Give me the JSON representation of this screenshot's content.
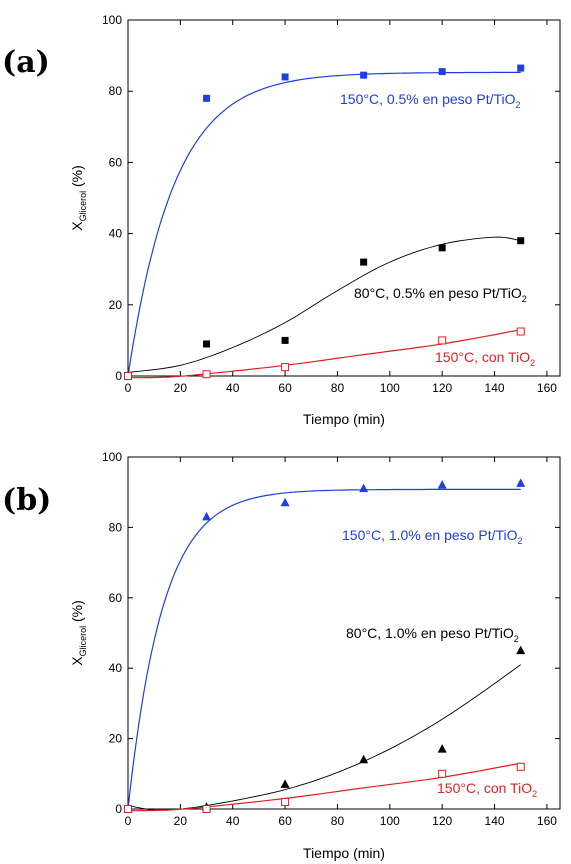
{
  "chart_data": [
    {
      "type": "scatter",
      "panel_label": "(a)",
      "xlabel": "Tiempo (min)",
      "ylabel_main": "X",
      "ylabel_sub": "Glicerol",
      "ylabel_unit": " (%)",
      "xlim": [
        0,
        165
      ],
      "ylim": [
        0,
        100
      ],
      "xticks": [
        0,
        20,
        40,
        60,
        80,
        100,
        120,
        140,
        160
      ],
      "yticks": [
        0,
        20,
        40,
        60,
        80,
        100
      ],
      "series": [
        {
          "id": "a-blue",
          "label_main": "150°C, 0.5% en peso Pt/TiO",
          "label_sub": "2",
          "color": "#1f3fe0",
          "marker": "square-filled",
          "x": [
            0,
            30,
            60,
            90,
            120,
            150
          ],
          "y": [
            0,
            78,
            84,
            84.5,
            85.5,
            86.5
          ],
          "fit": {
            "kind": "exp",
            "a": 85.3,
            "k": 0.0565
          }
        },
        {
          "id": "a-black",
          "label_main": "80°C, 0.5% en peso Pt/TiO",
          "label_sub": "2",
          "color": "#000000",
          "marker": "square-filled",
          "x": [
            0,
            30,
            60,
            90,
            120,
            150
          ],
          "y": [
            0,
            9,
            10,
            32,
            36,
            38
          ],
          "fit": {
            "kind": "points",
            "x": [
              0,
              20,
              40,
              60,
              80,
              100,
              120,
              140,
              150
            ],
            "y": [
              1,
              3,
              8,
              15,
              24,
              32,
              37,
              39,
              38
            ]
          }
        },
        {
          "id": "a-red",
          "label_main": "150°C, con TiO",
          "label_sub": "2",
          "color": "#e02020",
          "marker": "square-open",
          "x": [
            0,
            30,
            60,
            120,
            150
          ],
          "y": [
            0,
            0.5,
            2.5,
            10,
            12.5
          ],
          "fit": {
            "kind": "points",
            "x": [
              0,
              15,
              30,
              60,
              90,
              120,
              150
            ],
            "y": [
              -0.5,
              -0.3,
              0.6,
              3,
              6,
              9,
              13
            ]
          }
        }
      ]
    },
    {
      "type": "scatter",
      "panel_label": "(b)",
      "xlabel": "Tiempo (min)",
      "ylabel_main": "X",
      "ylabel_sub": "Glicerol",
      "ylabel_unit": " (%)",
      "xlim": [
        0,
        165
      ],
      "ylim": [
        0,
        100
      ],
      "xticks": [
        0,
        20,
        40,
        60,
        80,
        100,
        120,
        140,
        160
      ],
      "yticks": [
        0,
        20,
        40,
        60,
        80,
        100
      ],
      "series": [
        {
          "id": "b-blue",
          "label_main": "150°C, 1.0% en peso Pt/TiO",
          "label_sub": "2",
          "color": "#1f3fe0",
          "marker": "triangle-filled",
          "x": [
            0,
            30,
            60,
            90,
            120,
            150
          ],
          "y": [
            0,
            83,
            87,
            91,
            92,
            92.5
          ],
          "fit": {
            "kind": "exp",
            "a": 90.8,
            "k": 0.075
          }
        },
        {
          "id": "b-black",
          "label_main": "80°C, 1.0% en peso Pt/TiO",
          "label_sub": "2",
          "color": "#000000",
          "marker": "triangle-filled",
          "x": [
            0,
            30,
            60,
            90,
            120,
            150
          ],
          "y": [
            0,
            0.5,
            7,
            14,
            17,
            45
          ],
          "fit": {
            "kind": "points",
            "x": [
              0,
              10,
              20,
              30,
              45,
              60,
              75,
              90,
              105,
              120,
              135,
              150
            ],
            "y": [
              1,
              -0.3,
              0,
              1,
              3,
              5.5,
              9,
              13.5,
              19,
              25.5,
              33,
              41
            ]
          }
        },
        {
          "id": "b-red",
          "label_main": "150°C, con TiO",
          "label_sub": "2",
          "color": "#e02020",
          "marker": "square-open",
          "x": [
            0,
            30,
            60,
            120,
            150
          ],
          "y": [
            0,
            0,
            2,
            10,
            12
          ],
          "fit": {
            "kind": "points",
            "x": [
              0,
              15,
              30,
              60,
              90,
              120,
              150
            ],
            "y": [
              -0.5,
              -0.3,
              0.6,
              3,
              6,
              9,
              13
            ]
          }
        }
      ]
    }
  ]
}
